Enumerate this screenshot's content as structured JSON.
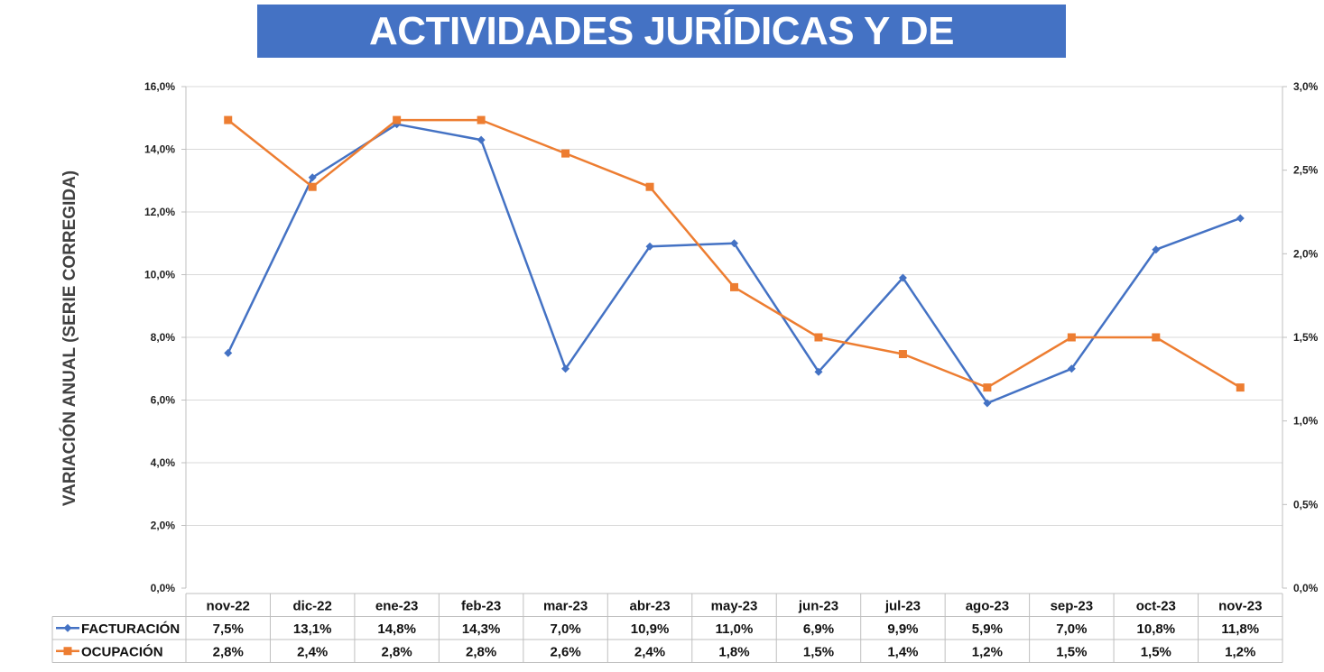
{
  "chart_data": {
    "type": "line",
    "title": "ACTIVIDADES JURÍDICAS Y DE CONSULTORÍA",
    "ylabel": "VARIACIÓN ANUAL (SERIE CORREGIDA)",
    "categories": [
      "nov-22",
      "dic-22",
      "ene-23",
      "feb-23",
      "mar-23",
      "abr-23",
      "may-23",
      "jun-23",
      "jul-23",
      "ago-23",
      "sep-23",
      "oct-23",
      "nov-23"
    ],
    "ylim": [
      0,
      16
    ],
    "y_ticks": [
      "0,0%",
      "2,0%",
      "4,0%",
      "6,0%",
      "8,0%",
      "10,0%",
      "12,0%",
      "14,0%",
      "16,0%"
    ],
    "y2lim": [
      0,
      3
    ],
    "y2_ticks": [
      "0,0%",
      "0,5%",
      "1,0%",
      "1,5%",
      "2,0%",
      "2,5%",
      "3,0%"
    ],
    "grid": true,
    "series": [
      {
        "name": "FACTURACIÓN",
        "axis": "left",
        "color": "#4472c4",
        "marker": "diamond",
        "values": [
          7.5,
          13.1,
          14.8,
          14.3,
          7.0,
          10.9,
          11.0,
          6.9,
          9.9,
          5.9,
          7.0,
          10.8,
          11.8
        ],
        "labels": [
          "7,5%",
          "13,1%",
          "14,8%",
          "14,3%",
          "7,0%",
          "10,9%",
          "11,0%",
          "6,9%",
          "9,9%",
          "5,9%",
          "7,0%",
          "10,8%",
          "11,8%"
        ]
      },
      {
        "name": "OCUPACIÓN",
        "axis": "right",
        "color": "#ed7d31",
        "marker": "square",
        "values": [
          2.8,
          2.4,
          2.8,
          2.8,
          2.6,
          2.4,
          1.8,
          1.5,
          1.4,
          1.2,
          1.5,
          1.5,
          1.2
        ],
        "labels": [
          "2,8%",
          "2,4%",
          "2,8%",
          "2,8%",
          "2,6%",
          "2,4%",
          "1,8%",
          "1,5%",
          "1,4%",
          "1,2%",
          "1,5%",
          "1,5%",
          "1,2%"
        ]
      }
    ]
  }
}
